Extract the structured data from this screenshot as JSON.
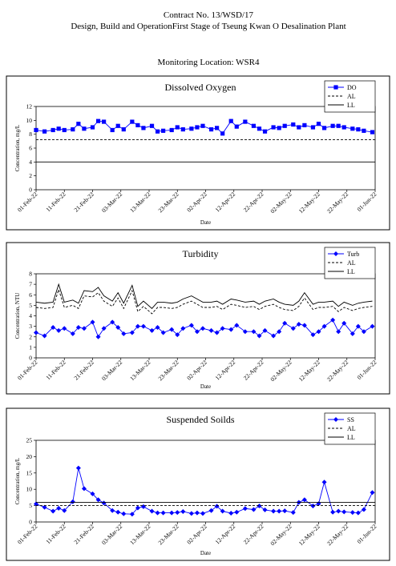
{
  "header": {
    "contract": "Contract No. 13/WSD/17",
    "project": "Design, Build and OperationFirst Stage  of Tseung Kwan O Desalination Plant",
    "location": "Monitoring Location: WSR4"
  },
  "chart_data": [
    {
      "type": "line",
      "title": "Dissolved Oxygen",
      "x_label": "Date",
      "y_label": "Concentration, mg/L",
      "x": [
        "2022-02-01",
        "2022-02-04",
        "2022-02-07",
        "2022-02-09",
        "2022-02-11",
        "2022-02-14",
        "2022-02-16",
        "2022-02-18",
        "2022-02-21",
        "2022-02-23",
        "2022-02-25",
        "2022-02-28",
        "2022-03-02",
        "2022-03-04",
        "2022-03-07",
        "2022-03-09",
        "2022-03-11",
        "2022-03-14",
        "2022-03-16",
        "2022-03-18",
        "2022-03-21",
        "2022-03-23",
        "2022-03-25",
        "2022-03-28",
        "2022-03-30",
        "2022-04-01",
        "2022-04-04",
        "2022-04-06",
        "2022-04-08",
        "2022-04-11",
        "2022-04-13",
        "2022-04-16",
        "2022-04-19",
        "2022-04-21",
        "2022-04-23",
        "2022-04-26",
        "2022-04-28",
        "2022-04-30",
        "2022-05-03",
        "2022-05-05",
        "2022-05-07",
        "2022-05-10",
        "2022-05-12",
        "2022-05-14",
        "2022-05-17",
        "2022-05-19",
        "2022-05-21",
        "2022-05-24",
        "2022-05-26",
        "2022-05-28",
        "2022-05-31"
      ],
      "series": [
        {
          "name": "DO",
          "color": "#0000ff",
          "marker": "square",
          "dash": false,
          "values": [
            8.6,
            8.4,
            8.6,
            8.8,
            8.6,
            8.7,
            9.5,
            8.8,
            9.0,
            9.9,
            9.8,
            8.6,
            9.2,
            8.7,
            9.8,
            9.3,
            8.9,
            9.2,
            8.4,
            8.5,
            8.6,
            9.0,
            8.7,
            8.8,
            9.0,
            9.2,
            8.7,
            8.9,
            8.1,
            9.9,
            9.1,
            9.8,
            9.2,
            8.8,
            8.4,
            9.0,
            8.9,
            9.2,
            9.4,
            9.0,
            9.3,
            9.0,
            9.5,
            8.9,
            9.2,
            9.2,
            9.0,
            8.8,
            8.7,
            8.5,
            8.3
          ]
        },
        {
          "name": "AL",
          "color": "#000000",
          "marker": "none",
          "dash": true,
          "x": [
            "2022-02-01",
            "2022-06-01"
          ],
          "values": [
            7.2,
            7.2
          ]
        },
        {
          "name": "LL",
          "color": "#000000",
          "marker": "none",
          "dash": false,
          "x": [
            "2022-02-01",
            "2022-06-01"
          ],
          "values": [
            4,
            4
          ]
        }
      ],
      "xlim": [
        "2022-02-01",
        "2022-06-01"
      ],
      "xticks": [
        {
          "value": "2022-02-01",
          "label": "01-Feb-22"
        },
        {
          "value": "2022-02-11",
          "label": "11-Feb-22"
        },
        {
          "value": "2022-02-21",
          "label": "21-Feb-22"
        },
        {
          "value": "2022-03-03",
          "label": "03-Mar-22"
        },
        {
          "value": "2022-03-13",
          "label": "13-Mar-22"
        },
        {
          "value": "2022-03-23",
          "label": "23-Mar-22"
        },
        {
          "value": "2022-04-02",
          "label": "02-Apr-22"
        },
        {
          "value": "2022-04-12",
          "label": "12-Apr-22"
        },
        {
          "value": "2022-04-22",
          "label": "22-Apr-22"
        },
        {
          "value": "2022-05-02",
          "label": "02-May-22"
        },
        {
          "value": "2022-05-12",
          "label": "12-May-22"
        },
        {
          "value": "2022-05-22",
          "label": "22-May-22"
        },
        {
          "value": "2022-06-01",
          "label": "01-Jun-22"
        }
      ],
      "ylim": [
        0,
        12
      ],
      "yticks": [
        0,
        2,
        4,
        6,
        8,
        10,
        12
      ],
      "legend": "top-right"
    },
    {
      "type": "line",
      "title": "Turbidity",
      "x_label": "Date",
      "y_label": "Concentration, NTU",
      "x": [
        "2022-02-01",
        "2022-02-04",
        "2022-02-07",
        "2022-02-09",
        "2022-02-11",
        "2022-02-14",
        "2022-02-16",
        "2022-02-18",
        "2022-02-21",
        "2022-02-23",
        "2022-02-25",
        "2022-02-28",
        "2022-03-02",
        "2022-03-04",
        "2022-03-07",
        "2022-03-09",
        "2022-03-11",
        "2022-03-14",
        "2022-03-16",
        "2022-03-18",
        "2022-03-21",
        "2022-03-23",
        "2022-03-25",
        "2022-03-28",
        "2022-03-30",
        "2022-04-01",
        "2022-04-04",
        "2022-04-06",
        "2022-04-08",
        "2022-04-11",
        "2022-04-13",
        "2022-04-16",
        "2022-04-19",
        "2022-04-21",
        "2022-04-23",
        "2022-04-26",
        "2022-04-28",
        "2022-04-30",
        "2022-05-03",
        "2022-05-05",
        "2022-05-07",
        "2022-05-10",
        "2022-05-12",
        "2022-05-14",
        "2022-05-17",
        "2022-05-19",
        "2022-05-21",
        "2022-05-24",
        "2022-05-26",
        "2022-05-28",
        "2022-05-31"
      ],
      "series": [
        {
          "name": "Turb",
          "color": "#0000ff",
          "marker": "diamond",
          "dash": false,
          "values": [
            2.4,
            2.1,
            2.9,
            2.6,
            2.8,
            2.3,
            2.9,
            2.8,
            3.4,
            2.0,
            2.8,
            3.4,
            2.9,
            2.3,
            2.4,
            3.0,
            3.0,
            2.6,
            2.9,
            2.4,
            2.7,
            2.2,
            2.8,
            3.1,
            2.5,
            2.8,
            2.6,
            2.4,
            2.8,
            2.7,
            3.1,
            2.5,
            2.5,
            2.1,
            2.6,
            2.1,
            2.5,
            3.3,
            2.8,
            3.2,
            3.1,
            2.2,
            2.5,
            3.0,
            3.6,
            2.5,
            3.3,
            2.3,
            3.0,
            2.5,
            3.0
          ]
        },
        {
          "name": "AL",
          "color": "#000000",
          "marker": "none",
          "dash": true,
          "values": [
            4.8,
            4.7,
            4.8,
            6.5,
            4.8,
            5.0,
            4.7,
            5.9,
            5.8,
            6.2,
            5.4,
            4.9,
            5.7,
            4.7,
            6.4,
            4.4,
            4.9,
            4.2,
            4.8,
            4.8,
            4.7,
            4.8,
            5.1,
            5.4,
            5.1,
            4.8,
            4.8,
            4.9,
            4.6,
            5.1,
            5.0,
            4.8,
            4.9,
            4.6,
            4.9,
            5.1,
            4.8,
            4.6,
            4.5,
            4.9,
            5.7,
            4.6,
            4.8,
            4.8,
            4.9,
            4.4,
            4.8,
            4.5,
            4.7,
            4.8,
            4.9
          ]
        },
        {
          "name": "LL",
          "color": "#000000",
          "marker": "none",
          "dash": false,
          "values": [
            5.3,
            5.2,
            5.3,
            7.0,
            5.3,
            5.5,
            5.2,
            6.4,
            6.3,
            6.7,
            5.9,
            5.4,
            6.2,
            5.2,
            6.9,
            4.9,
            5.4,
            4.7,
            5.3,
            5.3,
            5.2,
            5.3,
            5.6,
            5.9,
            5.6,
            5.3,
            5.3,
            5.4,
            5.1,
            5.6,
            5.5,
            5.3,
            5.4,
            5.1,
            5.4,
            5.6,
            5.3,
            5.1,
            5.0,
            5.4,
            6.2,
            5.1,
            5.3,
            5.3,
            5.4,
            4.9,
            5.3,
            5.0,
            5.2,
            5.3,
            5.4
          ]
        }
      ],
      "xlim": [
        "2022-02-01",
        "2022-06-01"
      ],
      "xticks": [
        {
          "value": "2022-02-01",
          "label": "01-Feb-22"
        },
        {
          "value": "2022-02-11",
          "label": "11-Feb-22"
        },
        {
          "value": "2022-02-21",
          "label": "21-Feb-22"
        },
        {
          "value": "2022-03-03",
          "label": "03-Mar-22"
        },
        {
          "value": "2022-03-13",
          "label": "13-Mar-22"
        },
        {
          "value": "2022-03-23",
          "label": "23-Mar-22"
        },
        {
          "value": "2022-04-02",
          "label": "02-Apr-22"
        },
        {
          "value": "2022-04-12",
          "label": "12-Apr-22"
        },
        {
          "value": "2022-04-22",
          "label": "22-Apr-22"
        },
        {
          "value": "2022-05-02",
          "label": "02-May-22"
        },
        {
          "value": "2022-05-12",
          "label": "12-May-22"
        },
        {
          "value": "2022-05-22",
          "label": "22-May-22"
        },
        {
          "value": "2022-06-01",
          "label": "01-Jun-22"
        }
      ],
      "ylim": [
        0,
        8
      ],
      "yticks": [
        0,
        1,
        2,
        3,
        4,
        5,
        6,
        7,
        8
      ],
      "legend": "top-right"
    },
    {
      "type": "line",
      "title": "Suspended Soilds",
      "x_label": "Date",
      "y_label": "Concentration, mg/L",
      "x": [
        "2022-02-01",
        "2022-02-04",
        "2022-02-07",
        "2022-02-09",
        "2022-02-11",
        "2022-02-14",
        "2022-02-16",
        "2022-02-18",
        "2022-02-21",
        "2022-02-23",
        "2022-02-25",
        "2022-02-28",
        "2022-03-02",
        "2022-03-04",
        "2022-03-07",
        "2022-03-09",
        "2022-03-11",
        "2022-03-14",
        "2022-03-16",
        "2022-03-18",
        "2022-03-21",
        "2022-03-23",
        "2022-03-25",
        "2022-03-28",
        "2022-03-30",
        "2022-04-01",
        "2022-04-04",
        "2022-04-06",
        "2022-04-08",
        "2022-04-11",
        "2022-04-13",
        "2022-04-16",
        "2022-04-19",
        "2022-04-21",
        "2022-04-23",
        "2022-04-26",
        "2022-04-28",
        "2022-04-30",
        "2022-05-03",
        "2022-05-05",
        "2022-05-07",
        "2022-05-10",
        "2022-05-12",
        "2022-05-14",
        "2022-05-17",
        "2022-05-19",
        "2022-05-21",
        "2022-05-24",
        "2022-05-26",
        "2022-05-28",
        "2022-05-31"
      ],
      "series": [
        {
          "name": "SS",
          "color": "#0000ff",
          "marker": "diamond",
          "dash": false,
          "values": [
            5.5,
            4.5,
            3.3,
            4.2,
            3.5,
            6.2,
            16.5,
            10.2,
            8.6,
            6.8,
            5.8,
            3.5,
            3.0,
            2.5,
            2.4,
            4.3,
            4.7,
            3.3,
            2.8,
            2.8,
            2.8,
            2.9,
            3.2,
            2.6,
            2.8,
            2.6,
            3.5,
            4.8,
            3.3,
            2.7,
            3.0,
            4.1,
            3.8,
            4.9,
            3.7,
            3.3,
            3.3,
            3.4,
            2.9,
            6.0,
            6.8,
            4.9,
            5.6,
            12.2,
            3.0,
            3.3,
            3.1,
            2.9,
            2.8,
            3.8,
            9.0
          ]
        },
        {
          "name": "AL",
          "color": "#000000",
          "marker": "none",
          "dash": true,
          "x": [
            "2022-02-01",
            "2022-06-01"
          ],
          "values": [
            5,
            5
          ]
        },
        {
          "name": "LL",
          "color": "#000000",
          "marker": "none",
          "dash": false,
          "x": [
            "2022-02-01",
            "2022-06-01"
          ],
          "values": [
            6,
            6
          ]
        }
      ],
      "xlim": [
        "2022-02-01",
        "2022-06-01"
      ],
      "xticks": [
        {
          "value": "2022-02-01",
          "label": "01-Feb-22"
        },
        {
          "value": "2022-02-11",
          "label": "11-Feb-22"
        },
        {
          "value": "2022-02-21",
          "label": "21-Feb-22"
        },
        {
          "value": "2022-03-03",
          "label": "03-Mar-22"
        },
        {
          "value": "2022-03-13",
          "label": "13-Mar-22"
        },
        {
          "value": "2022-03-23",
          "label": "23-Mar-22"
        },
        {
          "value": "2022-04-02",
          "label": "02-Apr-22"
        },
        {
          "value": "2022-04-12",
          "label": "12-Apr-22"
        },
        {
          "value": "2022-04-22",
          "label": "22-Apr-22"
        },
        {
          "value": "2022-05-02",
          "label": "02-May-22"
        },
        {
          "value": "2022-05-12",
          "label": "12-May-22"
        },
        {
          "value": "2022-05-22",
          "label": "22-May-22"
        },
        {
          "value": "2022-06-01",
          "label": "01-Jun-22"
        }
      ],
      "ylim": [
        0,
        25
      ],
      "yticks": [
        0,
        5,
        10,
        15,
        20,
        25
      ],
      "legend": "top-right"
    }
  ]
}
